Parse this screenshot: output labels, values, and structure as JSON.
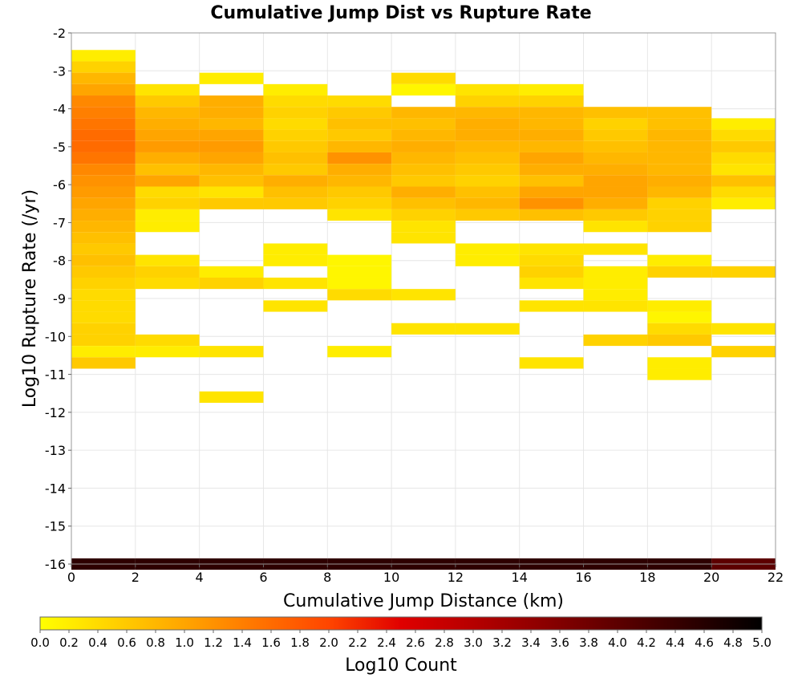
{
  "chart_data": {
    "type": "heatmap",
    "title": "Cumulative Jump Dist vs Rupture Rate",
    "xlabel": "Cumulative Jump Distance (km)",
    "ylabel": "Log10 Rupture Rate (/yr)",
    "colorbar_label": "Log10 Count",
    "xlim": [
      0,
      22
    ],
    "ylim": [
      -16,
      -2
    ],
    "x_ticks": [
      0,
      2,
      4,
      6,
      8,
      10,
      12,
      14,
      16,
      18,
      20,
      22
    ],
    "y_ticks": [
      -2,
      -3,
      -4,
      -5,
      -6,
      -7,
      -8,
      -9,
      -10,
      -11,
      -12,
      -13,
      -14,
      -15,
      -16
    ],
    "colorbar_range": [
      0,
      5
    ],
    "colorbar_ticks": [
      "0.0",
      "0.2",
      "0.4",
      "0.6",
      "0.8",
      "1.0",
      "1.2",
      "1.4",
      "1.6",
      "1.8",
      "2.0",
      "2.2",
      "2.4",
      "2.6",
      "2.8",
      "3.0",
      "3.2",
      "3.4",
      "3.6",
      "3.8",
      "4.0",
      "4.2",
      "4.4",
      "4.6",
      "4.8",
      "5.0"
    ],
    "colorscale": [
      "#ffff00",
      "#ffa500",
      "#ff4500",
      "#e00000",
      "#8b0000",
      "#000000"
    ],
    "grid": true,
    "x_bin_width_km": 2,
    "y_bin_height_log10": 0.3,
    "columns": [
      {
        "x": [
          0,
          2
        ],
        "cells": [
          [
            -2.6,
            0.2
          ],
          [
            -2.9,
            0.5
          ],
          [
            -3.2,
            0.8
          ],
          [
            -3.5,
            1.0
          ],
          [
            -3.8,
            1.3
          ],
          [
            -4.1,
            1.4
          ],
          [
            -4.4,
            1.5
          ],
          [
            -4.7,
            1.6
          ],
          [
            -5.0,
            1.6
          ],
          [
            -5.3,
            1.5
          ],
          [
            -5.6,
            1.3
          ],
          [
            -5.9,
            1.2
          ],
          [
            -6.2,
            1.1
          ],
          [
            -6.5,
            1.0
          ],
          [
            -6.8,
            0.9
          ],
          [
            -7.1,
            0.8
          ],
          [
            -7.4,
            0.7
          ],
          [
            -7.7,
            0.6
          ],
          [
            -8.0,
            0.7
          ],
          [
            -8.3,
            0.6
          ],
          [
            -8.6,
            0.5
          ],
          [
            -8.9,
            0.4
          ],
          [
            -9.2,
            0.4
          ],
          [
            -9.5,
            0.4
          ],
          [
            -9.8,
            0.5
          ],
          [
            -10.1,
            0.5
          ],
          [
            -10.4,
            0.2
          ],
          [
            -10.7,
            0.6
          ],
          [
            -16.0,
            4.5
          ]
        ]
      },
      {
        "x": [
          2,
          4
        ],
        "cells": [
          [
            -3.5,
            0.3
          ],
          [
            -3.8,
            0.6
          ],
          [
            -4.1,
            0.8
          ],
          [
            -4.4,
            0.9
          ],
          [
            -4.7,
            1.0
          ],
          [
            -5.0,
            1.1
          ],
          [
            -5.3,
            0.9
          ],
          [
            -5.6,
            0.7
          ],
          [
            -5.9,
            1.0
          ],
          [
            -6.2,
            0.4
          ],
          [
            -6.5,
            0.5
          ],
          [
            -6.8,
            0.2
          ],
          [
            -7.1,
            0.2
          ],
          [
            -8.0,
            0.3
          ],
          [
            -8.3,
            0.5
          ],
          [
            -8.6,
            0.4
          ],
          [
            -10.1,
            0.4
          ],
          [
            -10.4,
            0.2
          ],
          [
            -16.0,
            4.5
          ]
        ]
      },
      {
        "x": [
          4,
          6
        ],
        "cells": [
          [
            -3.2,
            0.2
          ],
          [
            -3.8,
            0.9
          ],
          [
            -4.1,
            0.9
          ],
          [
            -4.4,
            0.8
          ],
          [
            -4.7,
            1.0
          ],
          [
            -5.0,
            1.1
          ],
          [
            -5.3,
            1.0
          ],
          [
            -5.6,
            0.8
          ],
          [
            -5.9,
            0.7
          ],
          [
            -6.2,
            0.3
          ],
          [
            -6.5,
            0.6
          ],
          [
            -8.3,
            0.2
          ],
          [
            -8.6,
            0.5
          ],
          [
            -10.4,
            0.3
          ],
          [
            -11.6,
            0.3
          ],
          [
            -16.0,
            4.5
          ]
        ]
      },
      {
        "x": [
          6,
          8
        ],
        "cells": [
          [
            -3.5,
            0.2
          ],
          [
            -3.8,
            0.4
          ],
          [
            -4.1,
            0.5
          ],
          [
            -4.4,
            0.4
          ],
          [
            -4.7,
            0.5
          ],
          [
            -5.0,
            0.6
          ],
          [
            -5.3,
            0.7
          ],
          [
            -5.6,
            0.6
          ],
          [
            -5.9,
            0.9
          ],
          [
            -6.2,
            0.7
          ],
          [
            -6.5,
            0.6
          ],
          [
            -7.7,
            0.2
          ],
          [
            -8.0,
            0.2
          ],
          [
            -8.6,
            0.3
          ],
          [
            -9.2,
            0.3
          ],
          [
            -16.0,
            4.5
          ]
        ]
      },
      {
        "x": [
          8,
          10
        ],
        "cells": [
          [
            -3.8,
            0.4
          ],
          [
            -4.1,
            0.6
          ],
          [
            -4.4,
            0.7
          ],
          [
            -4.7,
            0.6
          ],
          [
            -5.0,
            0.8
          ],
          [
            -5.3,
            1.2
          ],
          [
            -5.6,
            0.9
          ],
          [
            -5.9,
            0.8
          ],
          [
            -6.2,
            0.6
          ],
          [
            -6.5,
            0.5
          ],
          [
            -6.8,
            0.3
          ],
          [
            -8.0,
            0.1
          ],
          [
            -8.3,
            0.1
          ],
          [
            -8.6,
            0.1
          ],
          [
            -8.9,
            0.4
          ],
          [
            -10.4,
            0.2
          ],
          [
            -16.0,
            4.5
          ]
        ]
      },
      {
        "x": [
          10,
          12
        ],
        "cells": [
          [
            -3.2,
            0.4
          ],
          [
            -3.5,
            0.1
          ],
          [
            -4.1,
            0.8
          ],
          [
            -4.4,
            0.7
          ],
          [
            -4.7,
            0.8
          ],
          [
            -5.0,
            0.9
          ],
          [
            -5.3,
            0.8
          ],
          [
            -5.6,
            0.7
          ],
          [
            -5.9,
            0.6
          ],
          [
            -6.2,
            0.9
          ],
          [
            -6.5,
            0.7
          ],
          [
            -6.8,
            0.5
          ],
          [
            -7.1,
            0.3
          ],
          [
            -7.4,
            0.3
          ],
          [
            -8.9,
            0.3
          ],
          [
            -9.8,
            0.3
          ],
          [
            -16.0,
            4.5
          ]
        ]
      },
      {
        "x": [
          12,
          14
        ],
        "cells": [
          [
            -3.5,
            0.3
          ],
          [
            -3.8,
            0.5
          ],
          [
            -4.1,
            0.8
          ],
          [
            -4.4,
            0.9
          ],
          [
            -4.7,
            0.9
          ],
          [
            -5.0,
            0.8
          ],
          [
            -5.3,
            0.7
          ],
          [
            -5.6,
            0.6
          ],
          [
            -5.9,
            0.5
          ],
          [
            -6.2,
            0.7
          ],
          [
            -6.5,
            0.8
          ],
          [
            -6.8,
            0.6
          ],
          [
            -7.7,
            0.2
          ],
          [
            -8.0,
            0.2
          ],
          [
            -9.8,
            0.3
          ],
          [
            -16.0,
            4.5
          ]
        ]
      },
      {
        "x": [
          14,
          16
        ],
        "cells": [
          [
            -3.5,
            0.2
          ],
          [
            -3.8,
            0.5
          ],
          [
            -4.1,
            0.8
          ],
          [
            -4.4,
            0.8
          ],
          [
            -4.7,
            0.9
          ],
          [
            -5.0,
            0.8
          ],
          [
            -5.3,
            1.0
          ],
          [
            -5.6,
            0.9
          ],
          [
            -5.9,
            0.7
          ],
          [
            -6.2,
            1.0
          ],
          [
            -6.5,
            1.2
          ],
          [
            -6.8,
            0.7
          ],
          [
            -7.7,
            0.3
          ],
          [
            -8.0,
            0.4
          ],
          [
            -8.3,
            0.5
          ],
          [
            -8.6,
            0.3
          ],
          [
            -9.2,
            0.3
          ],
          [
            -10.7,
            0.3
          ],
          [
            -16.0,
            4.5
          ]
        ]
      },
      {
        "x": [
          16,
          18
        ],
        "cells": [
          [
            -4.1,
            0.7
          ],
          [
            -4.4,
            0.5
          ],
          [
            -4.7,
            0.6
          ],
          [
            -5.0,
            0.7
          ],
          [
            -5.3,
            0.8
          ],
          [
            -5.6,
            0.9
          ],
          [
            -5.9,
            1.0
          ],
          [
            -6.2,
            1.0
          ],
          [
            -6.5,
            0.9
          ],
          [
            -6.8,
            0.6
          ],
          [
            -7.1,
            0.3
          ],
          [
            -7.7,
            0.3
          ],
          [
            -8.3,
            0.2
          ],
          [
            -8.6,
            0.2
          ],
          [
            -8.9,
            0.2
          ],
          [
            -9.2,
            0.3
          ],
          [
            -10.1,
            0.5
          ],
          [
            -16.0,
            4.5
          ]
        ]
      },
      {
        "x": [
          18,
          20
        ],
        "cells": [
          [
            -4.1,
            0.7
          ],
          [
            -4.4,
            0.7
          ],
          [
            -4.7,
            0.8
          ],
          [
            -5.0,
            0.8
          ],
          [
            -5.3,
            0.8
          ],
          [
            -5.6,
            0.8
          ],
          [
            -5.9,
            0.9
          ],
          [
            -6.2,
            0.8
          ],
          [
            -6.5,
            0.5
          ],
          [
            -6.8,
            0.5
          ],
          [
            -7.1,
            0.5
          ],
          [
            -8.0,
            0.2
          ],
          [
            -8.3,
            0.5
          ],
          [
            -9.2,
            0.2
          ],
          [
            -9.5,
            0.1
          ],
          [
            -9.8,
            0.4
          ],
          [
            -10.1,
            0.6
          ],
          [
            -10.7,
            0.2
          ],
          [
            -11.0,
            0.2
          ],
          [
            -16.0,
            4.5
          ]
        ]
      },
      {
        "x": [
          20,
          22
        ],
        "cells": [
          [
            -4.4,
            0.2
          ],
          [
            -4.7,
            0.4
          ],
          [
            -5.0,
            0.6
          ],
          [
            -5.3,
            0.4
          ],
          [
            -5.6,
            0.3
          ],
          [
            -5.9,
            0.7
          ],
          [
            -6.2,
            0.4
          ],
          [
            -6.5,
            0.2
          ],
          [
            -8.3,
            0.5
          ],
          [
            -9.8,
            0.3
          ],
          [
            -10.4,
            0.5
          ],
          [
            -16.0,
            4.0
          ]
        ]
      }
    ]
  }
}
